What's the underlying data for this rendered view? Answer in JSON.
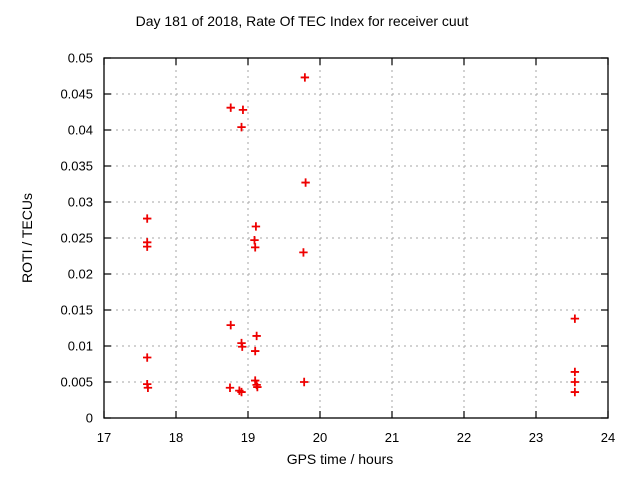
{
  "figure": {
    "background_color": "#ffffff",
    "text_color": "#000000"
  },
  "chart_data": {
    "type": "scatter",
    "title": "Day 181 of 2018, Rate Of TEC Index for receiver cuut",
    "xlabel": "GPS time / hours",
    "ylabel": "ROTI / TECUs",
    "xlim": [
      17,
      24
    ],
    "ylim": [
      0,
      0.05
    ],
    "x_ticks": [
      17,
      18,
      19,
      20,
      21,
      22,
      23,
      24
    ],
    "x_tick_labels": [
      "17",
      "18",
      "19",
      "20",
      "21",
      "22",
      "23",
      "24"
    ],
    "y_ticks": [
      0,
      0.005,
      0.01,
      0.015,
      0.02,
      0.025,
      0.03,
      0.035,
      0.04,
      0.045,
      0.05
    ],
    "y_tick_labels": [
      "0",
      "0.005",
      "0.01",
      "0.015",
      "0.02",
      "0.025",
      "0.03",
      "0.035",
      "0.04",
      "0.045",
      "0.05"
    ],
    "grid": true,
    "grid_color": "#a6a6a6",
    "border_color": "#000000",
    "marker": {
      "shape": "plus",
      "color": "#ee0000"
    },
    "legend": "none",
    "series": [
      {
        "name": "ROTI",
        "points": [
          [
            17.6,
            0.0277
          ],
          [
            17.6,
            0.0244
          ],
          [
            17.6,
            0.0238
          ],
          [
            17.6,
            0.0084
          ],
          [
            17.6,
            0.0047
          ],
          [
            17.61,
            0.0042
          ],
          [
            18.76,
            0.0431
          ],
          [
            18.93,
            0.0428
          ],
          [
            18.91,
            0.0404
          ],
          [
            18.76,
            0.0129
          ],
          [
            18.91,
            0.0104
          ],
          [
            18.92,
            0.0099
          ],
          [
            19.12,
            0.0114
          ],
          [
            19.1,
            0.0093
          ],
          [
            19.11,
            0.0266
          ],
          [
            19.09,
            0.0247
          ],
          [
            19.1,
            0.0237
          ],
          [
            18.75,
            0.0042
          ],
          [
            18.88,
            0.0038
          ],
          [
            18.91,
            0.0036
          ],
          [
            19.1,
            0.0052
          ],
          [
            19.12,
            0.0046
          ],
          [
            19.13,
            0.0043
          ],
          [
            19.79,
            0.0473
          ],
          [
            19.8,
            0.0327
          ],
          [
            19.77,
            0.023
          ],
          [
            19.78,
            0.005
          ],
          [
            23.54,
            0.0138
          ],
          [
            23.54,
            0.0064
          ],
          [
            23.54,
            0.005
          ],
          [
            23.54,
            0.0036
          ]
        ]
      }
    ]
  }
}
